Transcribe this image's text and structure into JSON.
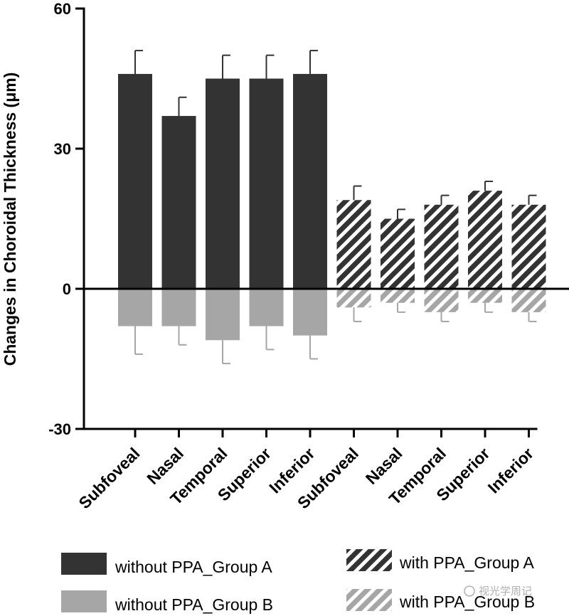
{
  "chart_data": {
    "type": "bar",
    "ylabel": "Changes in Choroidal Thickness (μm)",
    "xlabel": "",
    "ylim": [
      -30,
      60
    ],
    "yticks": [
      "60",
      "30",
      "0",
      "-30"
    ],
    "ytick_values": [
      60,
      30,
      0,
      -30
    ],
    "categories": [
      "Subfoveal",
      "Nasal",
      "Temporal",
      "Superior",
      "Inferior",
      "Subfoveal",
      "Nasal",
      "Temporal",
      "Superior",
      "Inferior"
    ],
    "series": [
      {
        "name": "without PPA_Group A",
        "color": "#333333",
        "pattern": "solid",
        "values": [
          46,
          37,
          45,
          45,
          46,
          null,
          null,
          null,
          null,
          null
        ],
        "errors": [
          5,
          4,
          5,
          5,
          5,
          null,
          null,
          null,
          null,
          null
        ]
      },
      {
        "name": "without PPA_Group B",
        "color": "#a6a6a6",
        "pattern": "solid",
        "values": [
          -8,
          -8,
          -11,
          -8,
          -10,
          null,
          null,
          null,
          null,
          null
        ],
        "errors": [
          6,
          4,
          5,
          5,
          5,
          null,
          null,
          null,
          null,
          null
        ]
      },
      {
        "name": "with PPA_Group A",
        "color": "#333333",
        "pattern": "hatched",
        "values": [
          null,
          null,
          null,
          null,
          null,
          19,
          15,
          18,
          21,
          18
        ],
        "errors": [
          null,
          null,
          null,
          null,
          null,
          3,
          2,
          2,
          2,
          2
        ]
      },
      {
        "name": "with PPA_Group B",
        "color": "#a6a6a6",
        "pattern": "hatched",
        "values": [
          null,
          null,
          null,
          null,
          null,
          -4,
          -3,
          -5,
          -3,
          -5
        ],
        "errors": [
          null,
          null,
          null,
          null,
          null,
          3,
          2,
          2,
          2,
          2
        ]
      }
    ],
    "legend_position": "bottom",
    "grid": false
  },
  "watermark": "视光学周记"
}
